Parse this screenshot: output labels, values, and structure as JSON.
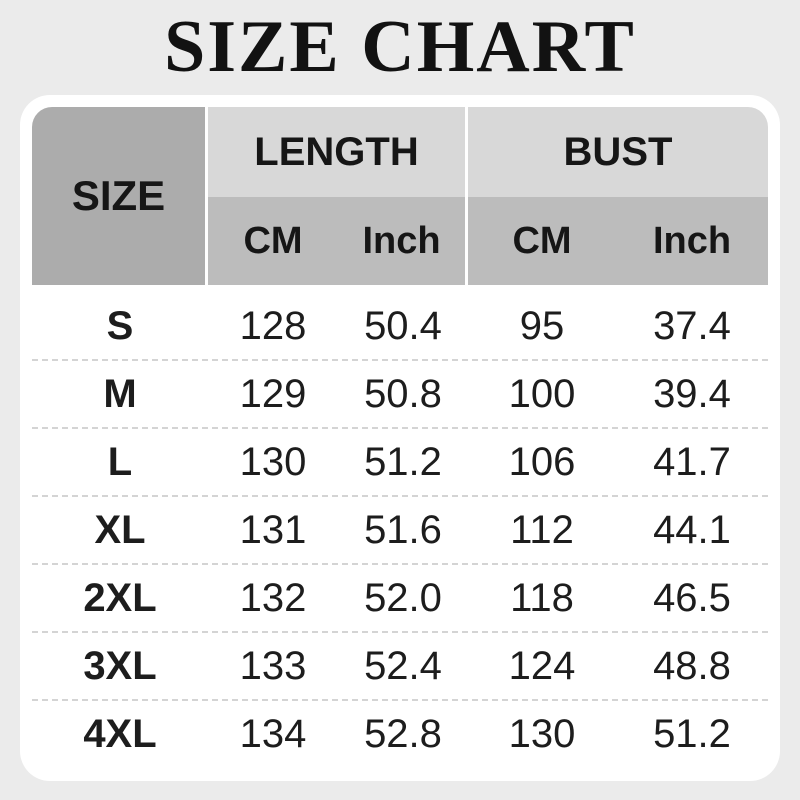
{
  "title": "SIZE CHART",
  "table": {
    "size_header": "SIZE",
    "length_header": "LENGTH",
    "bust_header": "BUST",
    "sub_headers": {
      "length_cm": "CM",
      "length_inch": "Inch",
      "bust_cm": "CM",
      "bust_inch": "Inch"
    },
    "rows": [
      {
        "size": "S",
        "length_cm": "128",
        "length_inch": "50.4",
        "bust_cm": "95",
        "bust_inch": "37.4"
      },
      {
        "size": "M",
        "length_cm": "129",
        "length_inch": "50.8",
        "bust_cm": "100",
        "bust_inch": "39.4"
      },
      {
        "size": "L",
        "length_cm": "130",
        "length_inch": "51.2",
        "bust_cm": "106",
        "bust_inch": "41.7"
      },
      {
        "size": "XL",
        "length_cm": "131",
        "length_inch": "51.6",
        "bust_cm": "112",
        "bust_inch": "44.1"
      },
      {
        "size": "2XL",
        "length_cm": "132",
        "length_inch": "52.0",
        "bust_cm": "118",
        "bust_inch": "46.5"
      },
      {
        "size": "3XL",
        "length_cm": "133",
        "length_inch": "52.4",
        "bust_cm": "124",
        "bust_inch": "48.8"
      },
      {
        "size": "4XL",
        "length_cm": "134",
        "length_inch": "52.8",
        "bust_cm": "130",
        "bust_inch": "51.2"
      }
    ]
  },
  "chart_data": {
    "type": "table",
    "title": "SIZE CHART",
    "column_groups": [
      {
        "label": "SIZE",
        "span": 1
      },
      {
        "label": "LENGTH",
        "span": 2
      },
      {
        "label": "BUST",
        "span": 2
      }
    ],
    "columns": [
      "SIZE",
      "LENGTH CM",
      "LENGTH Inch",
      "BUST CM",
      "BUST Inch"
    ],
    "rows": [
      [
        "S",
        128,
        50.4,
        95,
        37.4
      ],
      [
        "M",
        129,
        50.8,
        100,
        39.4
      ],
      [
        "L",
        130,
        51.2,
        106,
        41.7
      ],
      [
        "XL",
        131,
        51.6,
        112,
        44.1
      ],
      [
        "2XL",
        132,
        52.0,
        118,
        46.5
      ],
      [
        "3XL",
        133,
        52.4,
        124,
        48.8
      ],
      [
        "4XL",
        134,
        52.8,
        130,
        51.2
      ]
    ]
  },
  "colors": {
    "background": "#ebebeb",
    "card": "#ffffff",
    "size_cell": "#acacac",
    "group_header": "#d8d8d8",
    "sub_header": "#bcbcbc",
    "text": "#1a1a1a",
    "row_divider": "#d4d4d4"
  }
}
